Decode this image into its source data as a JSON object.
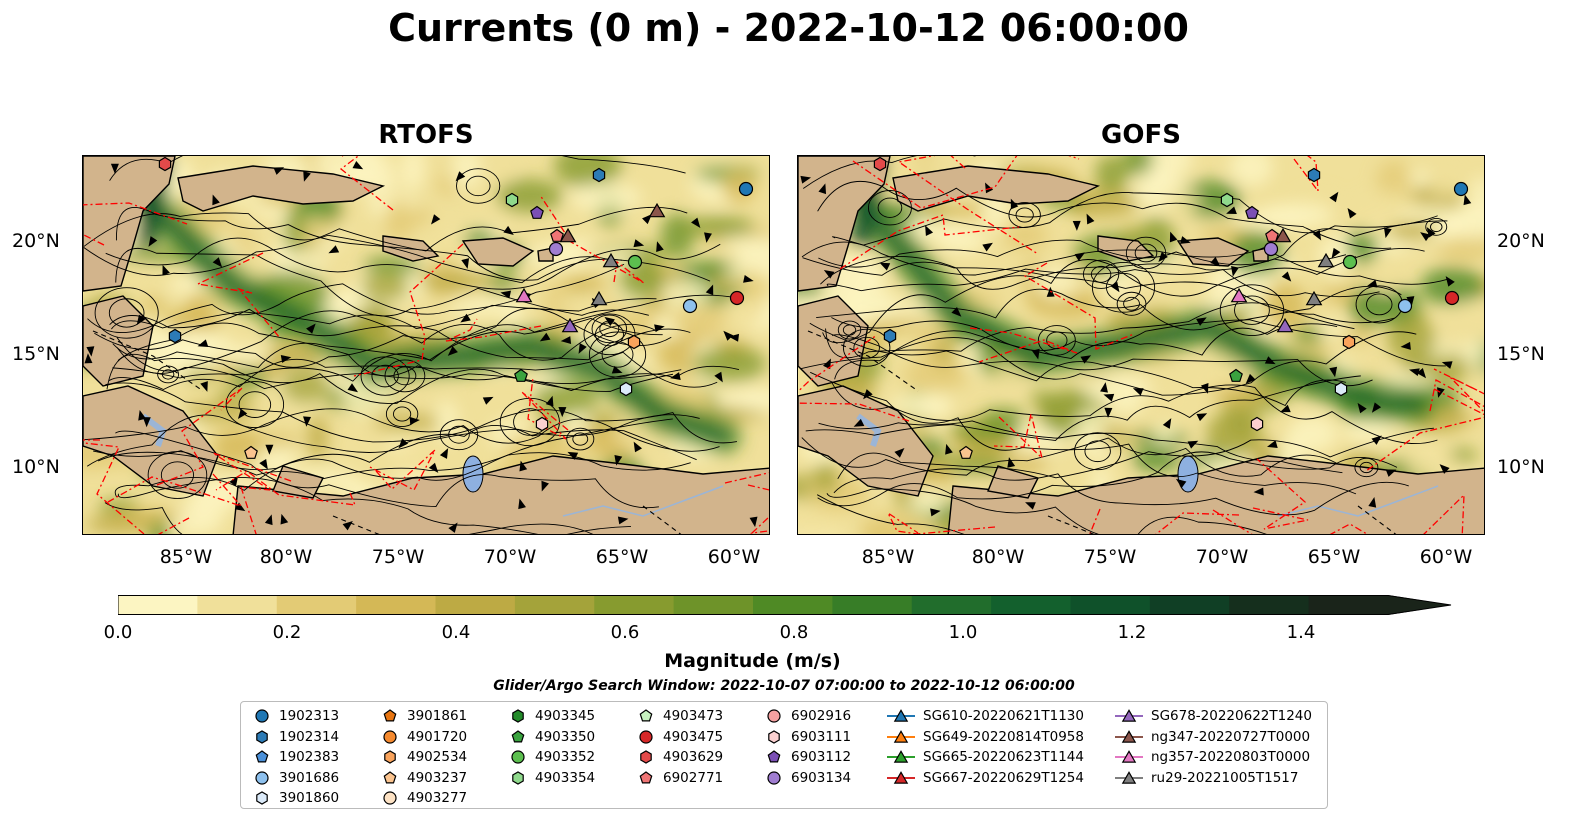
{
  "title": "Currents (0 m) - 2022-10-12 06:00:00",
  "panels": [
    {
      "title": "RTOFS"
    },
    {
      "title": "GOFS"
    }
  ],
  "lat_labels": [
    "20°N",
    "15°N",
    "10°N"
  ],
  "lon_labels": [
    "85°W",
    "80°W",
    "75°W",
    "70°W",
    "65°W",
    "60°W"
  ],
  "colorbar": {
    "label": "Magnitude (m/s)",
    "ticks": [
      "0.0",
      "0.2",
      "0.4",
      "0.6",
      "0.8",
      "1.0",
      "1.2",
      "1.4"
    ],
    "colors": [
      "#fcf5c2",
      "#f0e09a",
      "#e3cb75",
      "#d4b856",
      "#bdaa44",
      "#a4a33a",
      "#879b2f",
      "#6e9329",
      "#4f8a25",
      "#377d27",
      "#216d2c",
      "#13602d",
      "#0f512a",
      "#103f25",
      "#152f1d",
      "#1a241a"
    ],
    "max": 1.5,
    "extend": "max"
  },
  "search_window": "Glider/Argo Search Window: 2022-10-07 07:00:00 to 2022-10-12 06:00:00",
  "map_colors": {
    "land": "#d2b48c",
    "eez": "#ff0000",
    "lake": "#8eb0e0",
    "river": "#9bb5d6"
  },
  "legend": {
    "columns": [
      [
        {
          "label": "1902313",
          "marker": "circle",
          "color": "#1f77b4"
        },
        {
          "label": "1902314",
          "marker": "hexagon",
          "color": "#2c7bb6"
        },
        {
          "label": "1902383",
          "marker": "pentagon",
          "color": "#4a90d9"
        },
        {
          "label": "3901686",
          "marker": "circle",
          "color": "#8ec1ee"
        },
        {
          "label": "3901860",
          "marker": "hexagon",
          "color": "#dbeaf9"
        }
      ],
      [
        {
          "label": "3901861",
          "marker": "pentagon",
          "color": "#e87511"
        },
        {
          "label": "4901720",
          "marker": "circle",
          "color": "#f58a2f"
        },
        {
          "label": "4902534",
          "marker": "hexagon",
          "color": "#f9a35c"
        },
        {
          "label": "4903237",
          "marker": "pentagon",
          "color": "#fbc48f"
        },
        {
          "label": "4903277",
          "marker": "circle",
          "color": "#fde2c4"
        }
      ],
      [
        {
          "label": "4903345",
          "marker": "hexagon",
          "color": "#238b2a"
        },
        {
          "label": "4903350",
          "marker": "pentagon",
          "color": "#3aa33f"
        },
        {
          "label": "4903352",
          "marker": "circle",
          "color": "#5cbf4f"
        },
        {
          "label": "4903354",
          "marker": "hexagon",
          "color": "#8fd98c"
        }
      ],
      [
        {
          "label": "4903473",
          "marker": "pentagon",
          "color": "#c7f1bf"
        },
        {
          "label": "4903475",
          "marker": "circle",
          "color": "#d62728"
        },
        {
          "label": "4903629",
          "marker": "hexagon",
          "color": "#e34a4a"
        },
        {
          "label": "6902771",
          "marker": "pentagon",
          "color": "#ef7575"
        }
      ],
      [
        {
          "label": "6902916",
          "marker": "circle",
          "color": "#f4a0a0"
        },
        {
          "label": "6903111",
          "marker": "hexagon",
          "color": "#fbd0d0"
        },
        {
          "label": "6903112",
          "marker": "pentagon",
          "color": "#7b4fb5"
        },
        {
          "label": "6903134",
          "marker": "circle",
          "color": "#a07dd1"
        }
      ],
      [
        {
          "label": "SG610-20220621T1130",
          "marker": "triangle",
          "color": "#1f77b4"
        },
        {
          "label": "SG649-20220814T0958",
          "marker": "triangle",
          "color": "#ff7f0e"
        },
        {
          "label": "SG665-20220623T1144",
          "marker": "triangle",
          "color": "#2ca02c"
        },
        {
          "label": "SG667-20220629T1254",
          "marker": "triangle",
          "color": "#d62728"
        }
      ],
      [
        {
          "label": "SG678-20220622T1240",
          "marker": "triangle",
          "color": "#9467bd"
        },
        {
          "label": "ng347-20220727T0000",
          "marker": "triangle",
          "color": "#8c564b"
        },
        {
          "label": "ng357-20220803T0000",
          "marker": "triangle",
          "color": "#e377c2"
        },
        {
          "label": "ru29-20221005T1517",
          "marker": "triangle",
          "color": "#7f7f7f"
        }
      ]
    ]
  }
}
